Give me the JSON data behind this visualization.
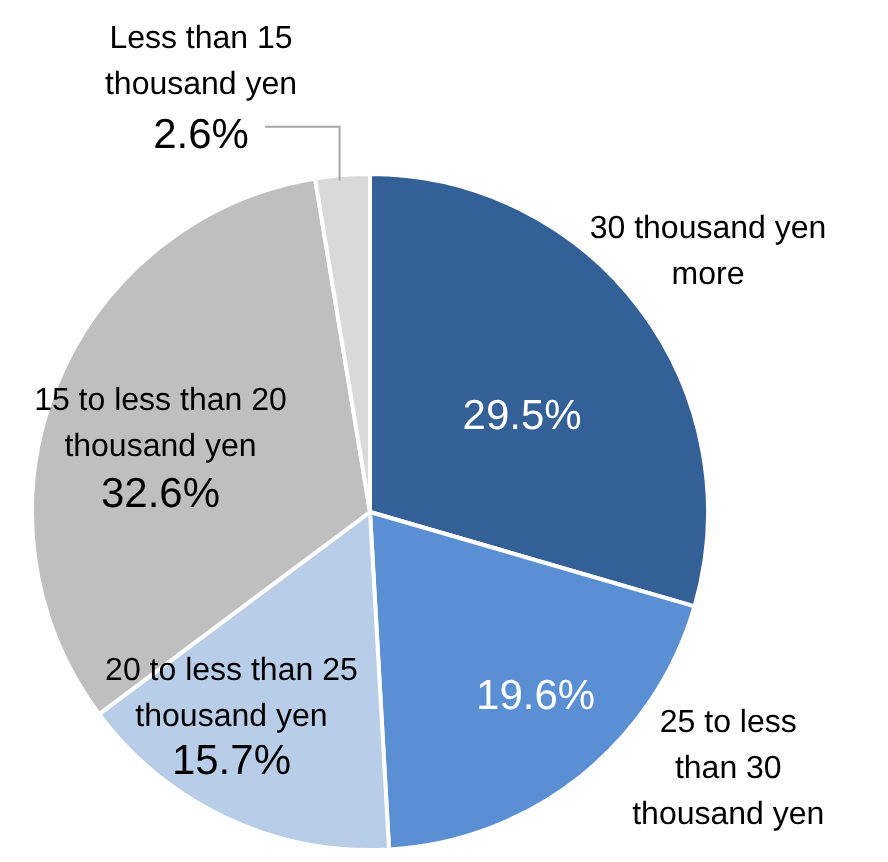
{
  "chart_data": {
    "type": "pie",
    "categories": [
      "30 thousand yen more",
      "25 to less than 30 thousand yen",
      "20 to less than 25 thousand yen",
      "15 to less than 20 thousand yen",
      "Less than 15 thousand yen"
    ],
    "values": [
      29.5,
      19.6,
      15.7,
      32.6,
      2.6
    ],
    "colors": [
      "#336096",
      "#5b8fd4",
      "#b8cde8",
      "#bfbfbf",
      "#d9d9d9"
    ],
    "value_labels": [
      "29.5%",
      "19.6%",
      "15.7%",
      "32.6%",
      "2.6%"
    ],
    "legend": false
  }
}
